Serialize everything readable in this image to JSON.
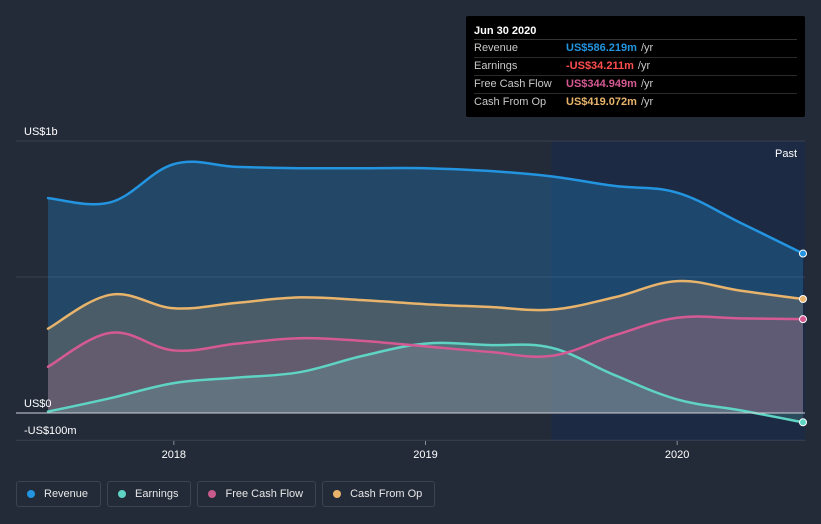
{
  "tooltip": {
    "date": "Jun 30 2020",
    "rows": [
      {
        "label": "Revenue",
        "value": "US$586.219m",
        "unit": "/yr",
        "color": "#2394df"
      },
      {
        "label": "Earnings",
        "value": "-US$34.211m",
        "unit": "/yr",
        "color": "#ff4d4d"
      },
      {
        "label": "Free Cash Flow",
        "value": "US$344.949m",
        "unit": "/yr",
        "color": "#d55a93"
      },
      {
        "label": "Cash From Op",
        "value": "US$419.072m",
        "unit": "/yr",
        "color": "#e8b46c"
      }
    ]
  },
  "legend": [
    {
      "label": "Revenue",
      "color": "#2394df"
    },
    {
      "label": "Earnings",
      "color": "#5fd3c4"
    },
    {
      "label": "Free Cash Flow",
      "color": "#c85a8c"
    },
    {
      "label": "Cash From Op",
      "color": "#e8b46c"
    }
  ],
  "chart_data": {
    "type": "area",
    "title": "",
    "xlabel": "",
    "ylabel": "",
    "ylim": [
      -100,
      1000
    ],
    "y_axis_labels": [
      {
        "value": 1000,
        "label": "US$1b"
      },
      {
        "value": 0,
        "label": "US$0"
      },
      {
        "value": -100,
        "label": "-US$100m"
      }
    ],
    "x_ticks": [
      {
        "value": 2018.0,
        "label": "2018"
      },
      {
        "value": 2019.0,
        "label": "2019"
      },
      {
        "value": 2020.0,
        "label": "2020"
      }
    ],
    "past_label": "Past",
    "past_region_start": 2019.5,
    "x_range": [
      2017.48,
      2020.5
    ],
    "series": [
      {
        "name": "Revenue",
        "color": "#2394df",
        "x": [
          2017.5,
          2017.75,
          2018.0,
          2018.25,
          2018.5,
          2018.75,
          2019.0,
          2019.25,
          2019.5,
          2019.75,
          2020.0,
          2020.25,
          2020.5
        ],
        "values": [
          790,
          775,
          915,
          905,
          900,
          900,
          900,
          890,
          870,
          835,
          810,
          700,
          586.2
        ]
      },
      {
        "name": "Earnings",
        "color": "#5fd3c4",
        "x": [
          2017.5,
          2017.75,
          2018.0,
          2018.25,
          2018.5,
          2018.75,
          2019.0,
          2019.25,
          2019.5,
          2019.75,
          2020.0,
          2020.25,
          2020.5
        ],
        "values": [
          5,
          55,
          110,
          130,
          150,
          210,
          255,
          250,
          240,
          140,
          50,
          10,
          -34.2
        ]
      },
      {
        "name": "Free Cash Flow",
        "color": "#d55a93",
        "x": [
          2017.5,
          2017.75,
          2018.0,
          2018.25,
          2018.5,
          2018.75,
          2019.0,
          2019.25,
          2019.5,
          2019.75,
          2020.0,
          2020.25,
          2020.5
        ],
        "values": [
          170,
          295,
          230,
          255,
          275,
          265,
          245,
          225,
          210,
          285,
          350,
          348,
          345
        ]
      },
      {
        "name": "Cash From Op",
        "color": "#e8b46c",
        "x": [
          2017.5,
          2017.75,
          2018.0,
          2018.25,
          2018.5,
          2018.75,
          2019.0,
          2019.25,
          2019.5,
          2019.75,
          2020.0,
          2020.25,
          2020.5
        ],
        "values": [
          310,
          435,
          385,
          405,
          425,
          415,
          400,
          390,
          380,
          425,
          485,
          450,
          419.1
        ]
      }
    ]
  }
}
